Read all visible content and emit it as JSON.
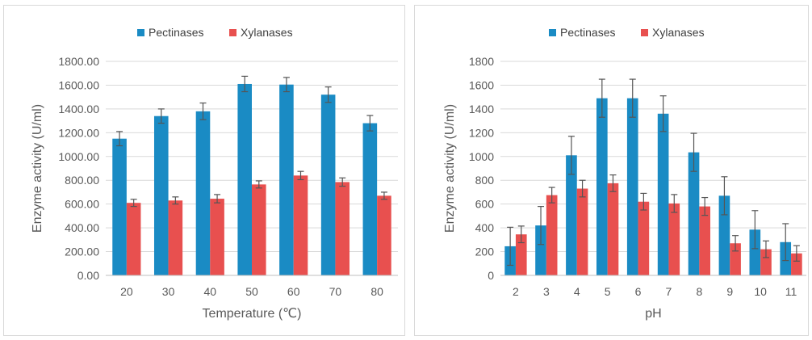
{
  "chart_data": [
    {
      "type": "bar",
      "categories": [
        "20",
        "30",
        "40",
        "50",
        "60",
        "70",
        "80"
      ],
      "series": [
        {
          "name": "Pectinases",
          "color": "#1a8bc4",
          "values": [
            1150,
            1340,
            1380,
            1610,
            1605,
            1520,
            1280
          ],
          "errors": [
            60,
            60,
            70,
            65,
            60,
            65,
            65
          ]
        },
        {
          "name": "Xylanases",
          "color": "#e8504f",
          "values": [
            610,
            630,
            645,
            765,
            840,
            785,
            670
          ],
          "errors": [
            30,
            30,
            35,
            30,
            35,
            35,
            30
          ]
        }
      ],
      "ylim": [
        0,
        1800
      ],
      "yticks": [
        "0.00",
        "200.00",
        "400.00",
        "600.00",
        "800.00",
        "1000.00",
        "1200.00",
        "1400.00",
        "1600.00",
        "1800.00"
      ],
      "xlabel": "Temperature (℃)",
      "ylabel": "Enzyme activity (U/ml)",
      "grid": true,
      "legend": "top"
    },
    {
      "type": "bar",
      "categories": [
        "2",
        "3",
        "4",
        "5",
        "6",
        "7",
        "8",
        "9",
        "10",
        "11"
      ],
      "series": [
        {
          "name": "Pectinases",
          "color": "#1a8bc4",
          "values": [
            245,
            420,
            1010,
            1490,
            1490,
            1360,
            1035,
            670,
            385,
            280
          ],
          "errors": [
            160,
            160,
            160,
            160,
            160,
            150,
            160,
            160,
            160,
            155
          ]
        },
        {
          "name": "Xylanases",
          "color": "#e8504f",
          "values": [
            345,
            675,
            730,
            775,
            620,
            605,
            580,
            270,
            220,
            185
          ],
          "errors": [
            70,
            65,
            70,
            70,
            70,
            75,
            75,
            65,
            70,
            65
          ]
        }
      ],
      "ylim": [
        0,
        1800
      ],
      "yticks": [
        "0",
        "200",
        "400",
        "600",
        "800",
        "1000",
        "1200",
        "1400",
        "1600",
        "1800"
      ],
      "xlabel": "pH",
      "ylabel": "Enzyme activity (U/ml)",
      "grid": true,
      "legend": "top"
    }
  ]
}
